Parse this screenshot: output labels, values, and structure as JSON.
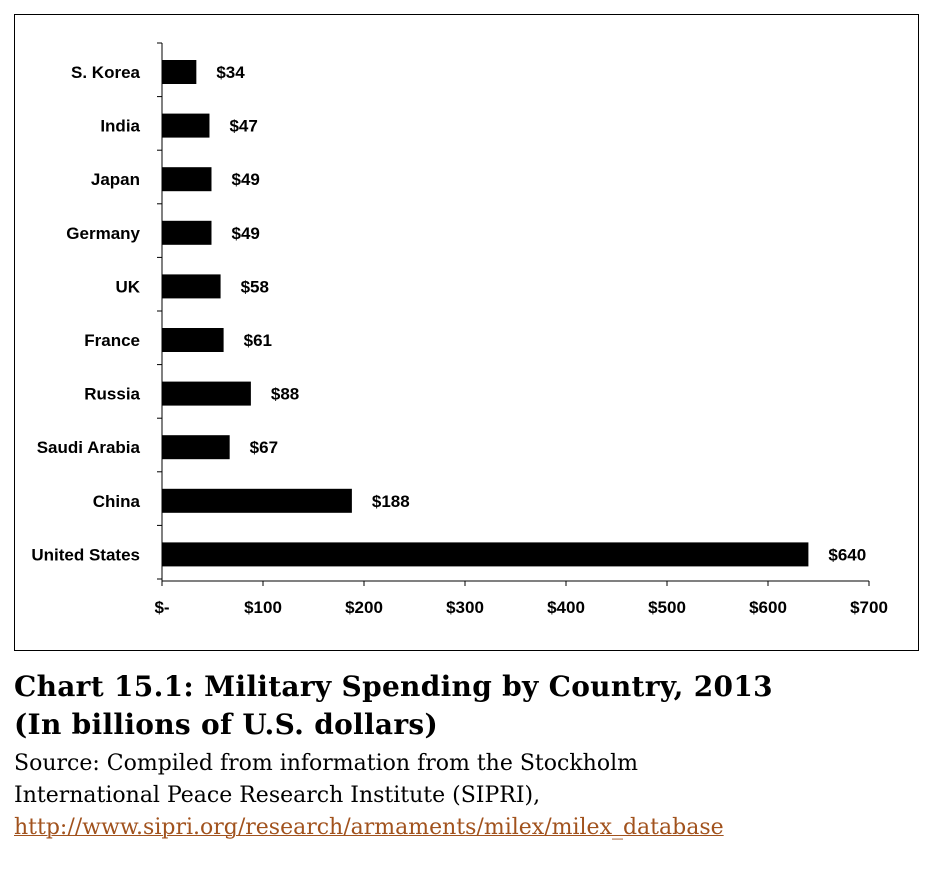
{
  "chart_data": {
    "type": "bar",
    "orientation": "horizontal",
    "categories": [
      "S. Korea",
      "India",
      "Japan",
      "Germany",
      "UK",
      "France",
      "Russia",
      "Saudi Arabia",
      "China",
      "United States"
    ],
    "values": [
      34,
      47,
      49,
      49,
      58,
      61,
      88,
      67,
      188,
      640
    ],
    "value_labels": [
      "$34",
      "$47",
      "$49",
      "$49",
      "$58",
      "$61",
      "$88",
      "$67",
      "$188",
      "$640"
    ],
    "x_ticks": [
      0,
      100,
      200,
      300,
      400,
      500,
      600,
      700
    ],
    "x_tick_labels": [
      "$-",
      "$100",
      "$200",
      "$300",
      "$400",
      "$500",
      "$600",
      "$700"
    ],
    "xlim": [
      0,
      700
    ],
    "grid": false,
    "bar_color": "#000000"
  },
  "caption": {
    "title_line1": "Chart 15.1: Military Spending by Country, 2013",
    "title_line2": "(In billions of U.S. dollars)",
    "source_line1": "Source: Compiled from information from the Stockholm",
    "source_line2": "International Peace Research Institute (SIPRI),",
    "url": "http://www.sipri.org/research/armaments/milex/milex_database"
  },
  "colors": {
    "link": "#a1521d",
    "text": "#000000"
  }
}
